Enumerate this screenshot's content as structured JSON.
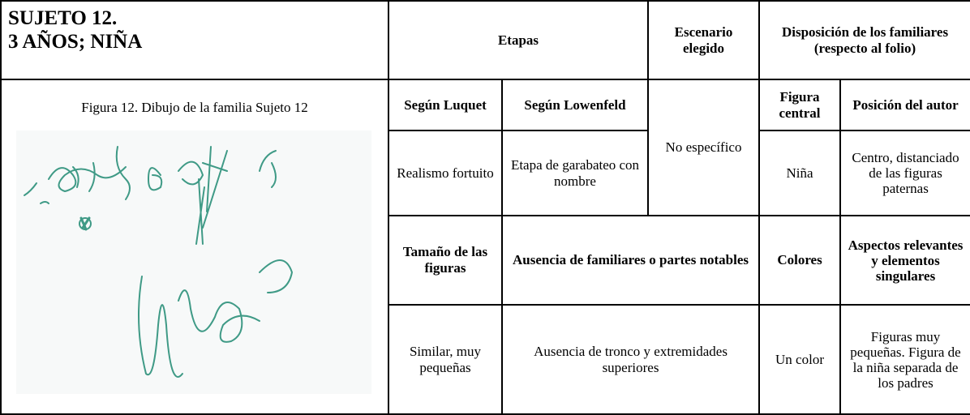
{
  "header": {
    "title_lines": [
      "SUJETO 12.",
      "3 AÑOS; NIÑA"
    ],
    "stages": "Etapas",
    "scenario": "Escenario elegido",
    "disposition": "Disposición de los familiares (respecto al folio)"
  },
  "figure_caption": "Figura 12. Dibujo de la familia Sujeto 12",
  "table": {
    "subheaders": [
      "Según Luquet",
      "Según Lowenfeld",
      "Figura central",
      "Posición del autor"
    ],
    "stage_row": {
      "luquet": "Realismo fortuito",
      "lowenfeld": "Etapa de garabateo con nombre",
      "scenario": "No específico",
      "central_figure": "Niña",
      "author_position": "Centro, distanciado de las figuras paternas"
    },
    "subheaders2": [
      "Tamaño de las figuras",
      "Ausencia de familiares o partes notables",
      "Colores",
      "Aspectos relevantes y elementos singulares"
    ],
    "detail_row": {
      "size": "Similar, muy pequeñas",
      "absence": "Ausencia de tronco y extremidades superiores",
      "colors": "Un color",
      "aspects": "Figuras muy pequeñas. Figura de la niña separada de los padres"
    }
  }
}
